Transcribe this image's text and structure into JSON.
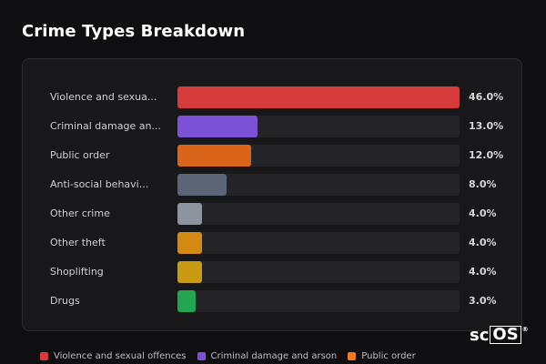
{
  "title": "Crime Types Breakdown",
  "rows": [
    {
      "label": "Violence and sexua...",
      "percent": 46.0,
      "percent_text": "46.0%",
      "color": "#d63b3b"
    },
    {
      "label": "Criminal damage an...",
      "percent": 13.0,
      "percent_text": "13.0%",
      "color": "#7b52d6"
    },
    {
      "label": "Public order",
      "percent": 12.0,
      "percent_text": "12.0%",
      "color": "#d9641a"
    },
    {
      "label": "Anti-social behavi...",
      "percent": 8.0,
      "percent_text": "8.0%",
      "color": "#5b6577"
    },
    {
      "label": "Other crime",
      "percent": 4.0,
      "percent_text": "4.0%",
      "color": "#8d949f"
    },
    {
      "label": "Other theft",
      "percent": 4.0,
      "percent_text": "4.0%",
      "color": "#d48a12"
    },
    {
      "label": "Shoplifting",
      "percent": 4.0,
      "percent_text": "4.0%",
      "color": "#c99a12"
    },
    {
      "label": "Drugs",
      "percent": 3.0,
      "percent_text": "3.0%",
      "color": "#22a652"
    }
  ],
  "legend": [
    {
      "label": "Violence and sexual offences",
      "color": "#d63b3b"
    },
    {
      "label": "Criminal damage and arson",
      "color": "#7b52d6"
    },
    {
      "label": "Public order",
      "color": "#f07a22"
    }
  ],
  "brand": {
    "sc": "sc",
    "os": "OS",
    "reg": "®"
  }
}
